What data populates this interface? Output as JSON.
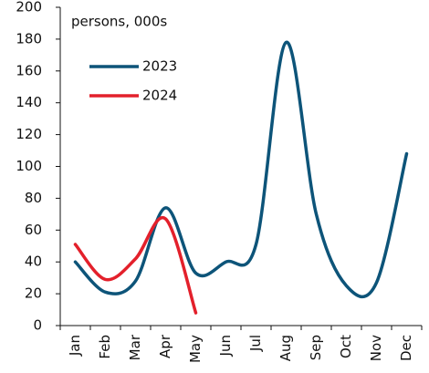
{
  "chart_data": {
    "type": "line",
    "subtitle": "persons, 000s",
    "categories": [
      "Jan",
      "Feb",
      "Mar",
      "Apr",
      "May",
      "Jun",
      "Jul",
      "Aug",
      "Sep",
      "Oct",
      "Nov",
      "Dec"
    ],
    "series": [
      {
        "name": "2023",
        "color": "#0d5479",
        "values": [
          40,
          21,
          28,
          74,
          33,
          40,
          51,
          178,
          70,
          25,
          27,
          108
        ]
      },
      {
        "name": "2024",
        "color": "#e3202b",
        "values": [
          51,
          29,
          42,
          67,
          8,
          null,
          null,
          null,
          null,
          null,
          null,
          null
        ]
      }
    ],
    "ylim": [
      0,
      200
    ],
    "yticks": [
      0,
      20,
      40,
      60,
      80,
      100,
      120,
      140,
      160,
      180,
      200
    ],
    "grid": false,
    "legend": "upper left"
  }
}
